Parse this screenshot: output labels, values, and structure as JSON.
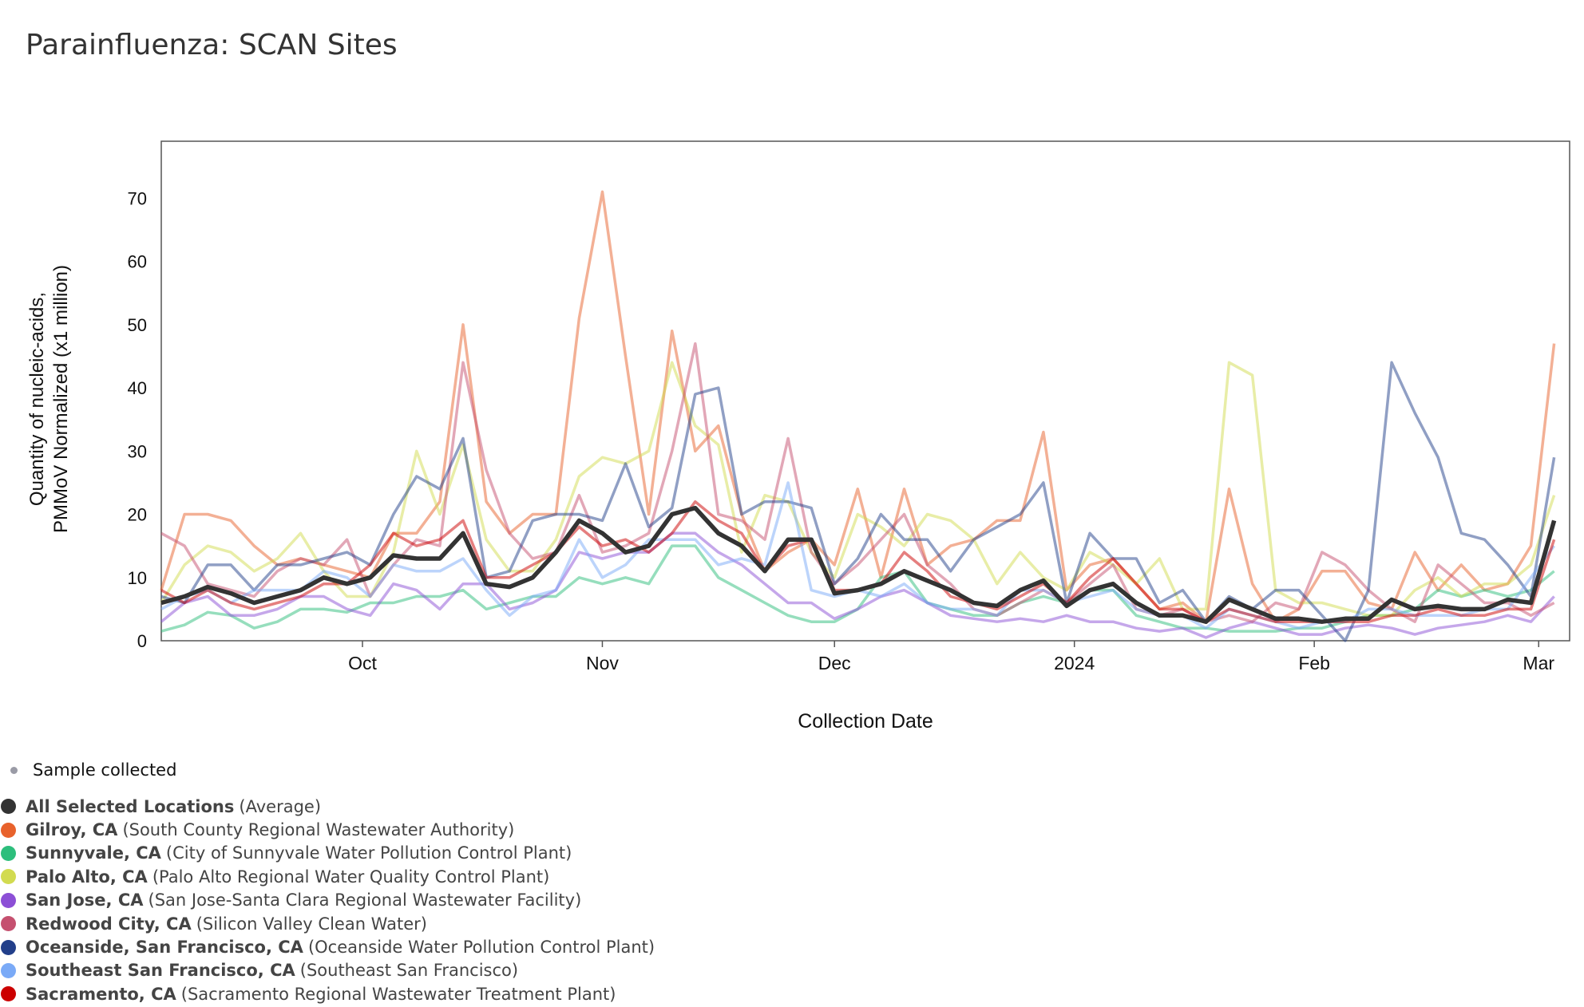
{
  "title": "Parainfluenza: SCAN Sites",
  "legend_sample": {
    "label": "Sample collected",
    "color": "#9a9ba6"
  },
  "chart_data": {
    "type": "line",
    "title": "Parainfluenza: SCAN Sites",
    "xlabel": "Collection Date",
    "ylabel_lines": [
      "Quantity of nucleic-acids,",
      "PMMoV Normalized (x1 million)"
    ],
    "ylim": [
      0,
      79
    ],
    "yticks": [
      0,
      10,
      20,
      30,
      40,
      50,
      60,
      70
    ],
    "xlim": [
      "2023-09-05",
      "2024-03-05"
    ],
    "xticks": [
      {
        "date": "2023-10-01",
        "label": "Oct"
      },
      {
        "date": "2023-11-01",
        "label": "Nov"
      },
      {
        "date": "2023-12-01",
        "label": "Dec"
      },
      {
        "date": "2024-01-01",
        "label": "2024"
      },
      {
        "date": "2024-02-01",
        "label": "Feb"
      },
      {
        "date": "2024-03-01",
        "label": "Mar"
      }
    ],
    "grid": false,
    "legend_position": "bottom-left",
    "x": [
      "2023-09-05",
      "2023-09-08",
      "2023-09-11",
      "2023-09-14",
      "2023-09-17",
      "2023-09-20",
      "2023-09-23",
      "2023-09-26",
      "2023-09-29",
      "2023-10-02",
      "2023-10-05",
      "2023-10-08",
      "2023-10-11",
      "2023-10-14",
      "2023-10-17",
      "2023-10-20",
      "2023-10-23",
      "2023-10-26",
      "2023-10-29",
      "2023-11-01",
      "2023-11-04",
      "2023-11-07",
      "2023-11-10",
      "2023-11-13",
      "2023-11-16",
      "2023-11-19",
      "2023-11-22",
      "2023-11-25",
      "2023-11-28",
      "2023-12-01",
      "2023-12-04",
      "2023-12-07",
      "2023-12-10",
      "2023-12-13",
      "2023-12-16",
      "2023-12-19",
      "2023-12-22",
      "2023-12-25",
      "2023-12-28",
      "2023-12-31",
      "2024-01-03",
      "2024-01-06",
      "2024-01-09",
      "2024-01-12",
      "2024-01-15",
      "2024-01-18",
      "2024-01-21",
      "2024-01-24",
      "2024-01-27",
      "2024-01-30",
      "2024-02-02",
      "2024-02-05",
      "2024-02-08",
      "2024-02-11",
      "2024-02-14",
      "2024-02-17",
      "2024-02-20",
      "2024-02-23",
      "2024-02-26",
      "2024-02-29",
      "2024-03-03"
    ],
    "series": [
      {
        "name": "Gilroy, CA",
        "detail": "(South County Regional Wastewater Authority)",
        "color": "#e8622c",
        "values": [
          8,
          20,
          20,
          19,
          15,
          12,
          13,
          12,
          11,
          10,
          17,
          17,
          22,
          50,
          22,
          17,
          20,
          20,
          51,
          71,
          45,
          20,
          49,
          30,
          34,
          20,
          11,
          14,
          16,
          12,
          24,
          10,
          24,
          12,
          15,
          16,
          19,
          19,
          33,
          8,
          12,
          13,
          9,
          5,
          6,
          3,
          24,
          9,
          3,
          5,
          11,
          11,
          6,
          5,
          14,
          8,
          12,
          8,
          9,
          15,
          47
        ]
      },
      {
        "name": "Sunnyvale, CA",
        "detail": "(City of Sunnyvale Water Pollution Control Plant)",
        "color": "#2dbe7c",
        "values": [
          1.5,
          2.5,
          4.5,
          4,
          2,
          3,
          5,
          5,
          4.5,
          6,
          6,
          7,
          7,
          8,
          5,
          6,
          7,
          7,
          10,
          9,
          10,
          9,
          15,
          15,
          10,
          8,
          6,
          4,
          3,
          3,
          5,
          10,
          11,
          6,
          5,
          4,
          4,
          6,
          7,
          6,
          8,
          8,
          4,
          3,
          2,
          2,
          1.5,
          1.5,
          1.5,
          2,
          2,
          3,
          4,
          4,
          5,
          8,
          7,
          8,
          7,
          8,
          11
        ]
      },
      {
        "name": "Palo Alto, CA",
        "detail": "(Palo Alto Regional Water Quality Control Plant)",
        "color": "#d2db50",
        "values": [
          6,
          12,
          15,
          14,
          11,
          13,
          17,
          11,
          7,
          7,
          14,
          30,
          20,
          31,
          16,
          11,
          11,
          16,
          26,
          29,
          28,
          30,
          44,
          34,
          31,
          14,
          23,
          22,
          14,
          10,
          20,
          18,
          15,
          20,
          19,
          16,
          9,
          14,
          10,
          8,
          14,
          12,
          9,
          13,
          5,
          5,
          44,
          42,
          8,
          6,
          6,
          5,
          4,
          4,
          8,
          10,
          7,
          9,
          9,
          12,
          23
        ]
      },
      {
        "name": "San Jose, CA",
        "detail": "(San Jose-Santa Clara Regional Wastewater Facility)",
        "color": "#8c4fd6",
        "values": [
          3,
          6,
          7,
          4,
          4,
          5,
          7,
          7,
          5,
          4,
          9,
          8,
          5,
          9,
          9,
          5,
          6,
          8,
          14,
          13,
          14,
          14,
          17,
          17,
          14,
          12,
          9,
          6,
          6,
          3.5,
          5,
          7,
          8,
          6,
          4,
          3.5,
          3,
          3.5,
          3,
          4,
          3,
          3,
          2,
          1.5,
          2,
          0.5,
          2,
          3,
          2,
          1,
          1,
          2,
          2.5,
          2,
          1,
          2,
          2.5,
          3,
          4,
          3,
          7
        ]
      },
      {
        "name": "Redwood City, CA",
        "detail": "(Silicon Valley Clean Water)",
        "color": "#c5506f",
        "values": [
          17,
          15,
          9,
          8,
          7,
          11,
          13,
          12,
          16,
          7,
          12,
          16,
          15,
          44,
          27,
          17,
          13,
          14,
          23,
          14,
          15,
          17,
          30,
          47,
          20,
          19,
          16,
          32,
          14,
          9,
          12,
          16,
          20,
          12,
          9,
          5,
          4,
          6,
          8,
          6,
          9,
          12,
          5,
          4,
          5,
          3,
          4,
          3,
          6,
          5,
          14,
          12,
          8,
          5,
          3,
          12,
          9,
          6,
          6,
          4,
          6
        ]
      },
      {
        "name": "Oceanside, San Francisco, CA",
        "detail": "(Oceanside Water Pollution Control Plant)",
        "color": "#223f8a",
        "values": [
          7,
          6,
          12,
          12,
          8,
          12,
          12,
          13,
          14,
          12,
          20,
          26,
          24,
          32,
          10,
          11,
          19,
          20,
          20,
          19,
          28,
          18,
          21,
          39,
          40,
          20,
          22,
          22,
          21,
          9,
          13,
          20,
          16,
          16,
          11,
          16,
          18,
          20,
          25,
          6,
          17,
          13,
          13,
          6,
          8,
          3,
          7,
          5,
          8,
          8,
          4,
          0,
          8,
          44,
          36,
          29,
          17,
          16,
          12,
          7,
          29
        ]
      },
      {
        "name": "Southeast San Francisco, CA",
        "detail": "(Southeast San Francisco)",
        "color": "#7aaaf7",
        "values": [
          5,
          7,
          8,
          6,
          8,
          8,
          8,
          11,
          10,
          7,
          12,
          11,
          11,
          13,
          8,
          4,
          7,
          8,
          16,
          10,
          12,
          16,
          16,
          16,
          12,
          13,
          12,
          25,
          8,
          7,
          8,
          7,
          9,
          6,
          5,
          5,
          4,
          8,
          8,
          6,
          7,
          8,
          5,
          4,
          4,
          2,
          5,
          4,
          3,
          2,
          3,
          3,
          5,
          5,
          4,
          4,
          4,
          5,
          5,
          10,
          15
        ]
      },
      {
        "name": "Sacramento, CA",
        "detail": "(Sacramento Regional Wastewater Treatment Plant)",
        "color": "#cc0000",
        "values": [
          8,
          6,
          8,
          6,
          5,
          6,
          7,
          9,
          9,
          12,
          17,
          15,
          16,
          19,
          10,
          10,
          12,
          14,
          18,
          15,
          16,
          14,
          17,
          22,
          19,
          17,
          11,
          15,
          16,
          8,
          8,
          9,
          14,
          11,
          7,
          6,
          5,
          7,
          9,
          6,
          10,
          13,
          9,
          5,
          5,
          3,
          5,
          4,
          3,
          3,
          3,
          3,
          3,
          4,
          4,
          5,
          4,
          4,
          5,
          5,
          16
        ]
      }
    ],
    "average": {
      "name": "All Selected Locations",
      "detail": "(Average)",
      "color": "#333333",
      "values": [
        6,
        7,
        8.5,
        7.5,
        6,
        7,
        8,
        10,
        9,
        10,
        13.5,
        13,
        13,
        17,
        9,
        8.5,
        10,
        14,
        19,
        17,
        14,
        15,
        20,
        21,
        17,
        15,
        11,
        16,
        16,
        7.5,
        8,
        9,
        11,
        9.5,
        8,
        6,
        5.5,
        8,
        9.5,
        5.5,
        8,
        9,
        6,
        4,
        4,
        3,
        6.5,
        5,
        3.5,
        3.5,
        3,
        3.5,
        3.5,
        6.5,
        5,
        5.5,
        5,
        5,
        6.5,
        6,
        19
      ]
    }
  }
}
